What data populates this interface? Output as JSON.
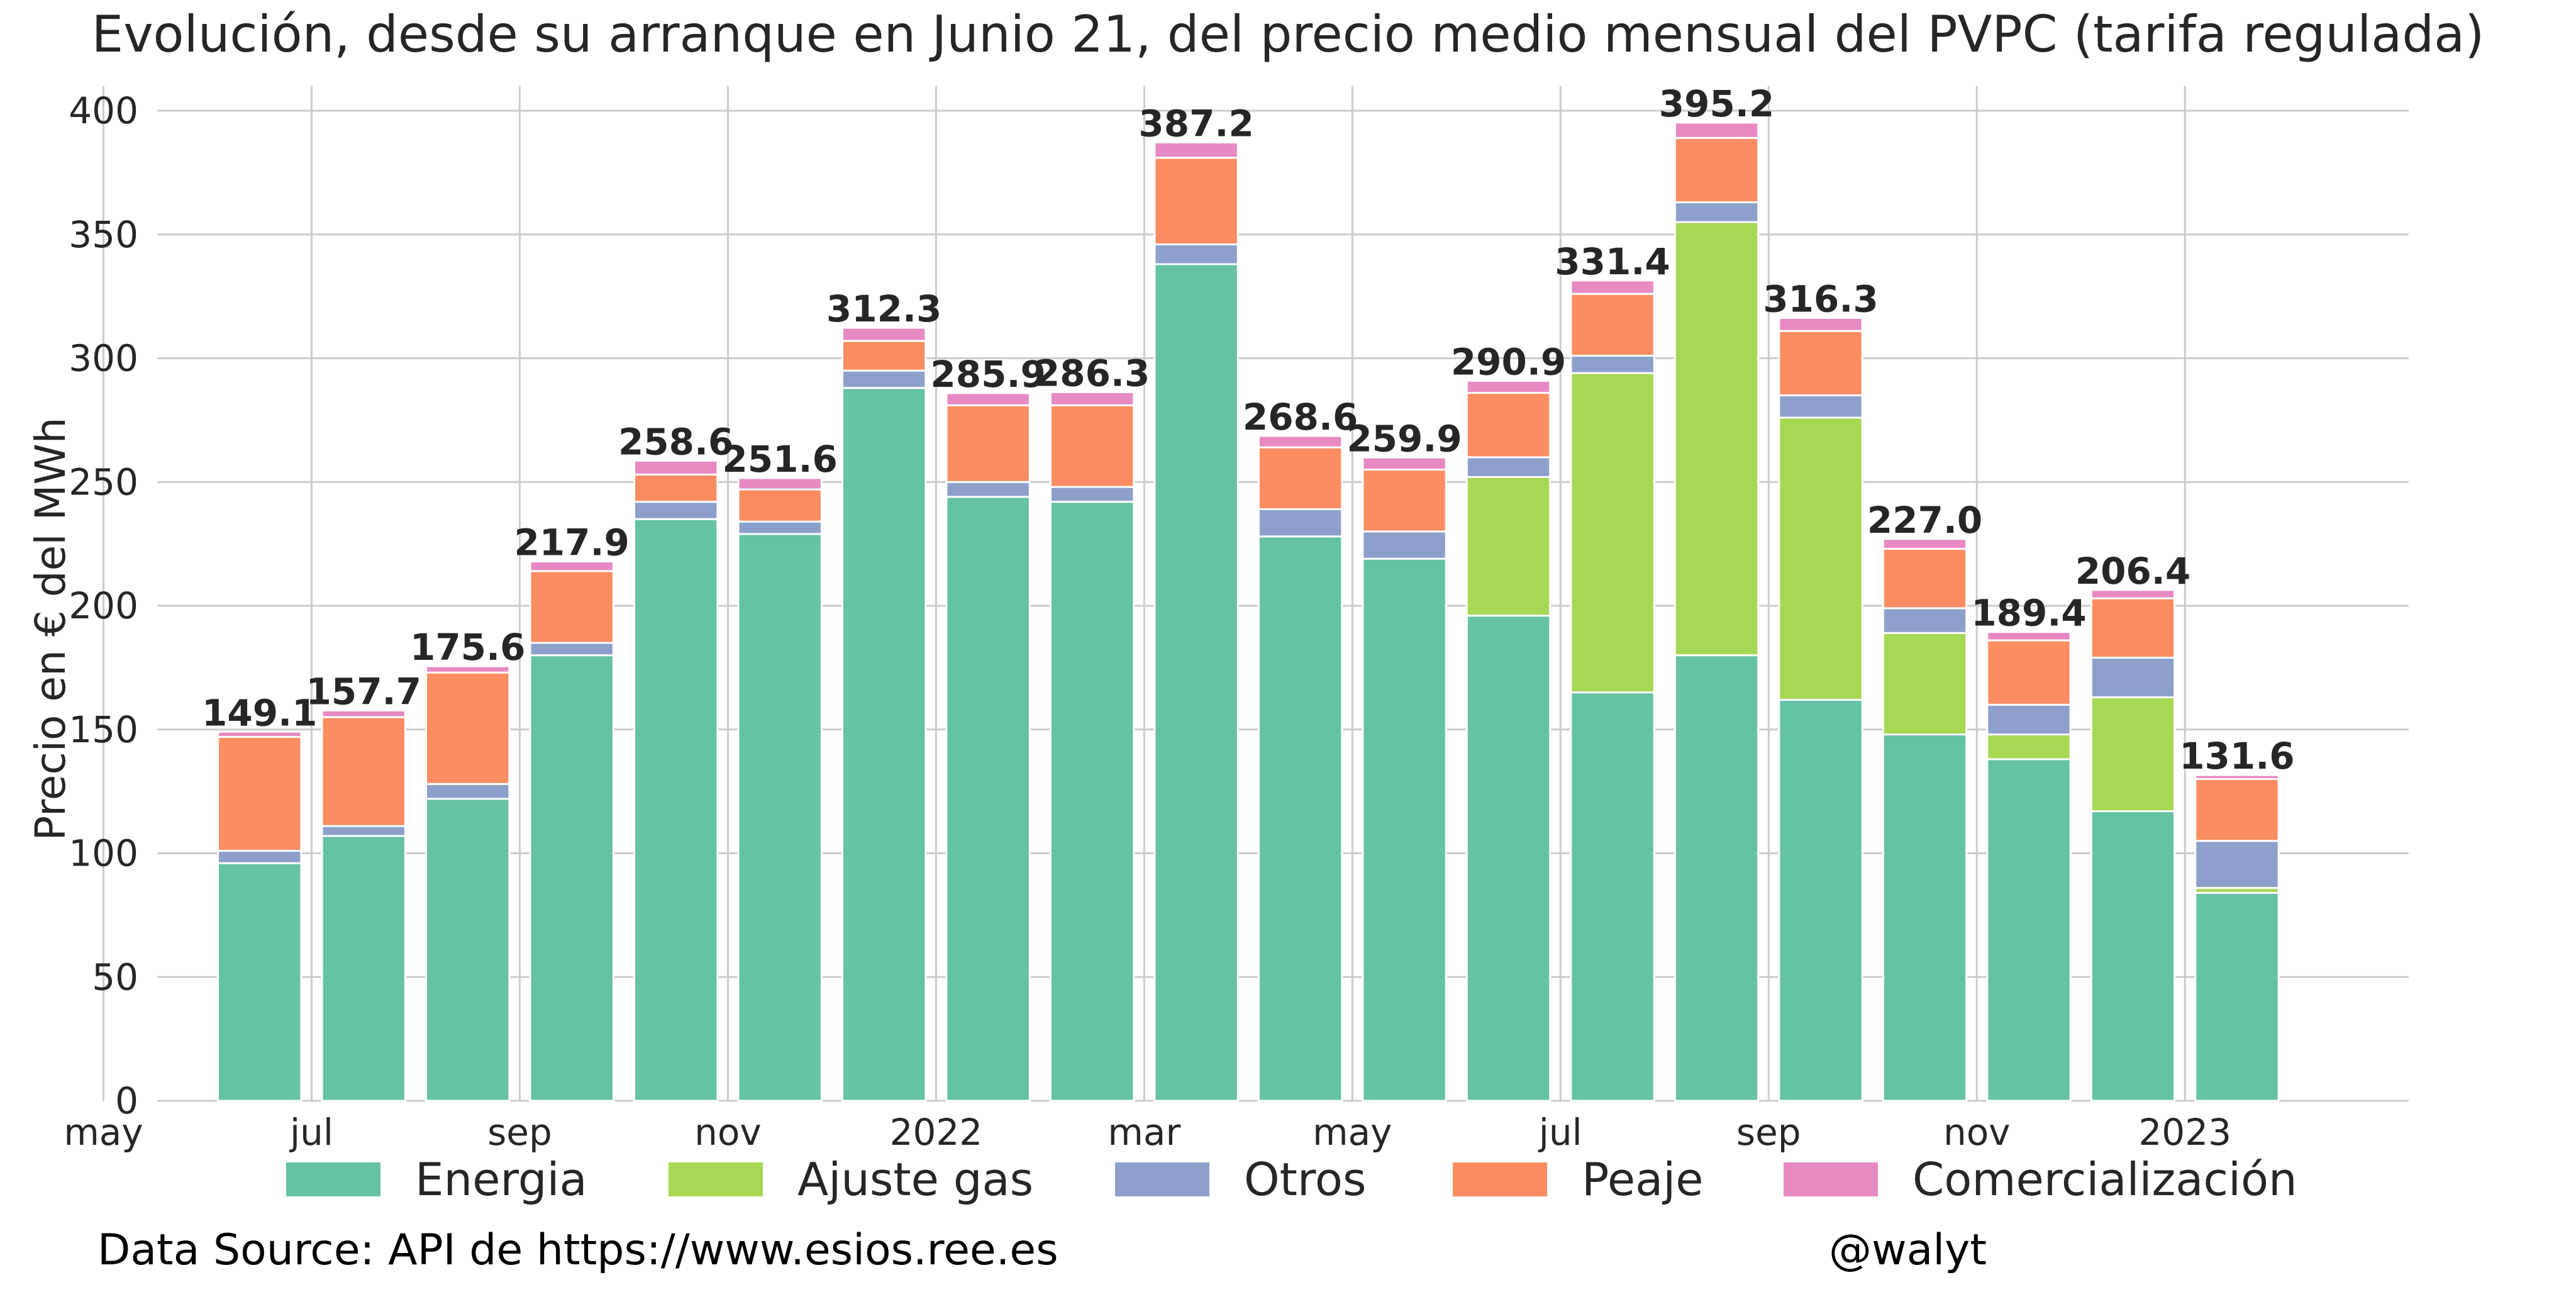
{
  "chart_data": {
    "type": "bar",
    "stacked": true,
    "title": "Evolución, desde su arranque en Junio 21, del precio medio mensual del PVPC (tarifa regulada)",
    "xlabel": "",
    "ylabel": "Precio en € del MWh",
    "ylim": [
      0,
      410
    ],
    "y_ticks": [
      0,
      50,
      100,
      150,
      200,
      250,
      300,
      350,
      400
    ],
    "x_tick_labels": [
      "may",
      "jul",
      "sep",
      "nov",
      "2022",
      "mar",
      "may",
      "jul",
      "sep",
      "nov",
      "2023"
    ],
    "categories": [
      "2021-06",
      "2021-07",
      "2021-08",
      "2021-09",
      "2021-10",
      "2021-11",
      "2021-12",
      "2022-01",
      "2022-02",
      "2022-03",
      "2022-04",
      "2022-05",
      "2022-06",
      "2022-07",
      "2022-08",
      "2022-09",
      "2022-10",
      "2022-11",
      "2022-12",
      "2023-01"
    ],
    "totals": [
      149.1,
      157.7,
      175.6,
      217.9,
      258.6,
      251.6,
      312.3,
      285.9,
      286.3,
      387.2,
      268.6,
      259.9,
      290.9,
      331.4,
      395.2,
      316.3,
      227.0,
      189.4,
      206.4,
      131.6
    ],
    "series": [
      {
        "name": "Energia",
        "color": "#66c2a5",
        "values": [
          96,
          107,
          122,
          180,
          235,
          229,
          288,
          244,
          242,
          338,
          228,
          219,
          196,
          165,
          180,
          162,
          148,
          138,
          117,
          84
        ]
      },
      {
        "name": "Ajuste gas",
        "color": "#a6d854",
        "values": [
          0,
          0,
          0,
          0,
          0,
          0,
          0,
          0,
          0,
          0,
          0,
          0,
          56,
          129,
          175,
          114,
          41,
          10,
          46,
          2
        ]
      },
      {
        "name": "Otros",
        "color": "#8da0cb",
        "values": [
          5,
          4,
          6,
          5,
          7,
          5,
          7,
          6,
          6,
          8,
          11,
          11,
          8,
          7,
          8,
          9,
          10,
          12,
          16,
          19
        ]
      },
      {
        "name": "Peaje",
        "color": "#fc8d62",
        "values": [
          46,
          44,
          45,
          29,
          11,
          13,
          12,
          31,
          33,
          35,
          25,
          25,
          26,
          25,
          26,
          26,
          24,
          26,
          24,
          25
        ]
      },
      {
        "name": "Comercialización",
        "color": "#e78ac3",
        "values": [
          2.1,
          2.7,
          2.6,
          3.9,
          5.6,
          4.6,
          5.3,
          4.9,
          5.3,
          6.2,
          4.6,
          4.9,
          4.9,
          5.4,
          6.2,
          5.3,
          4.0,
          3.4,
          3.4,
          1.6
        ]
      }
    ],
    "grid": true,
    "legend_position": "bottom"
  },
  "footer": {
    "source": "Data Source: API de https://www.esios.ree.es",
    "handle": "@walyt"
  }
}
